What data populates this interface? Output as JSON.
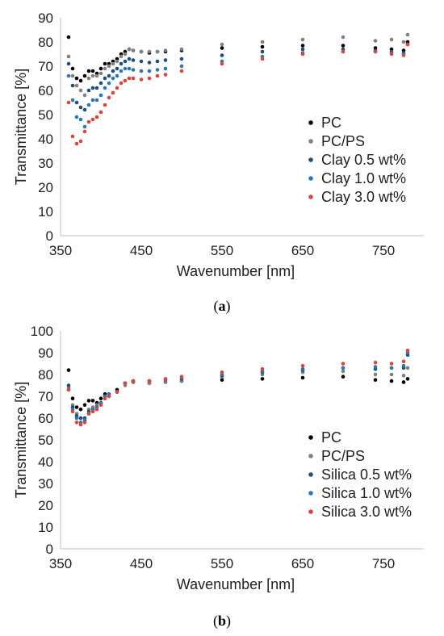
{
  "chart_data": [
    {
      "type": "scatter",
      "caption": "a",
      "xlabel": "Wavenumber [nm]",
      "ylabel": "Transmittance [%]",
      "xlim": [
        350,
        800
      ],
      "ylim": [
        0,
        90
      ],
      "xticks": [
        350,
        450,
        550,
        650,
        750
      ],
      "yticks": [
        0,
        10,
        20,
        30,
        40,
        50,
        60,
        70,
        80,
        90
      ],
      "grid": false,
      "legend_position": "right",
      "series": [
        {
          "name": "PC",
          "color": "#000000",
          "x": [
            360,
            365,
            370,
            375,
            380,
            385,
            390,
            395,
            400,
            405,
            410,
            415,
            420,
            425,
            430,
            435,
            440,
            450,
            460,
            470,
            480,
            500,
            550,
            600,
            650,
            700,
            740,
            760,
            775,
            780
          ],
          "y": [
            82,
            69,
            65,
            64,
            66,
            68,
            68,
            67,
            69,
            71,
            71,
            72,
            73,
            75,
            76,
            77,
            76.5,
            76,
            75.5,
            76,
            76,
            76.5,
            77.5,
            78,
            78.5,
            78.5,
            77.5,
            77,
            76.5,
            80
          ]
        },
        {
          "name": "PC/PS",
          "color": "#808080",
          "x": [
            360,
            365,
            370,
            375,
            380,
            385,
            390,
            395,
            400,
            405,
            410,
            415,
            420,
            425,
            430,
            435,
            440,
            450,
            460,
            470,
            480,
            500,
            550,
            600,
            650,
            700,
            740,
            760,
            775,
            780
          ],
          "y": [
            74,
            66,
            62,
            60,
            58,
            65,
            66,
            66,
            67,
            69,
            70,
            71,
            72,
            74,
            75,
            77,
            76.5,
            76,
            76,
            76,
            76.5,
            77,
            79,
            80,
            81,
            82,
            80.5,
            81,
            80,
            83
          ]
        },
        {
          "name": "Clay 0.5 wt%",
          "color": "#1f4e79",
          "x": [
            360,
            365,
            370,
            375,
            380,
            385,
            390,
            395,
            400,
            405,
            410,
            415,
            420,
            425,
            430,
            435,
            440,
            450,
            460,
            470,
            480,
            500,
            550,
            600,
            650,
            700,
            740,
            760,
            775,
            780
          ],
          "y": [
            71,
            62,
            55,
            53,
            52,
            60,
            61,
            61,
            63,
            65,
            66,
            68,
            69,
            71,
            72,
            73,
            72.5,
            72,
            71.5,
            72,
            72.5,
            73,
            74.5,
            76,
            77,
            77,
            76.5,
            76,
            75.5,
            79
          ]
        },
        {
          "name": "Clay 1.0 wt%",
          "color": "#2e75b6",
          "x": [
            360,
            365,
            370,
            375,
            380,
            385,
            390,
            395,
            400,
            405,
            410,
            415,
            420,
            425,
            430,
            435,
            440,
            450,
            460,
            470,
            480,
            500,
            550,
            600,
            650,
            700,
            740,
            760,
            775,
            780
          ],
          "y": [
            66,
            56,
            49,
            48,
            45,
            54,
            56,
            56,
            58,
            61,
            63,
            65,
            66,
            68,
            69,
            69,
            68.5,
            68,
            68,
            68.5,
            69,
            70,
            72,
            74,
            75.5,
            76,
            76,
            75.5,
            75,
            79
          ]
        },
        {
          "name": "Clay 3.0 wt%",
          "color": "#e0433a",
          "x": [
            360,
            365,
            370,
            375,
            380,
            385,
            390,
            395,
            400,
            405,
            410,
            415,
            420,
            425,
            430,
            435,
            440,
            450,
            460,
            470,
            480,
            500,
            550,
            600,
            650,
            700,
            740,
            760,
            775,
            780
          ],
          "y": [
            55,
            41,
            38,
            39,
            43,
            47,
            48,
            49,
            51,
            54,
            57,
            59,
            61,
            63,
            64,
            65,
            65,
            64.5,
            65,
            66,
            66.5,
            68,
            71,
            73,
            75,
            76,
            76,
            75,
            74.5,
            79
          ]
        }
      ]
    },
    {
      "type": "scatter",
      "caption": "b",
      "xlabel": "Wavenumber [nm]",
      "ylabel": "Transmittance [%]",
      "xlim": [
        350,
        800
      ],
      "ylim": [
        0,
        100
      ],
      "xticks": [
        350,
        450,
        550,
        650,
        750
      ],
      "yticks": [
        0,
        10,
        20,
        30,
        40,
        50,
        60,
        70,
        80,
        90,
        100
      ],
      "grid": false,
      "legend_position": "right",
      "series": [
        {
          "name": "PC",
          "color": "#000000",
          "x": [
            360,
            365,
            370,
            375,
            380,
            385,
            390,
            395,
            400,
            405,
            410,
            420,
            430,
            440,
            460,
            480,
            500,
            550,
            600,
            650,
            700,
            740,
            760,
            775,
            780
          ],
          "y": [
            82,
            69,
            65,
            64,
            66,
            68,
            68,
            67,
            69,
            71,
            71,
            73,
            76,
            76.5,
            76,
            76.5,
            77,
            77.5,
            78,
            78.5,
            79,
            77.5,
            77,
            76.5,
            78
          ]
        },
        {
          "name": "PC/PS",
          "color": "#808080",
          "x": [
            360,
            365,
            370,
            375,
            380,
            385,
            390,
            395,
            400,
            405,
            410,
            420,
            430,
            440,
            460,
            480,
            500,
            550,
            600,
            650,
            700,
            740,
            760,
            775,
            780
          ],
          "y": [
            74,
            66,
            62,
            60,
            59,
            64,
            65,
            66,
            67,
            69,
            70,
            72,
            75,
            76.5,
            76,
            76.5,
            77,
            79,
            80,
            81,
            81.5,
            80,
            80,
            79.5,
            83
          ]
        },
        {
          "name": "Silica 0.5 wt%",
          "color": "#1f4e79",
          "x": [
            360,
            365,
            370,
            375,
            380,
            385,
            390,
            395,
            400,
            405,
            410,
            420,
            430,
            440,
            460,
            480,
            500,
            550,
            600,
            650,
            700,
            740,
            760,
            775,
            780
          ],
          "y": [
            75,
            65,
            61,
            60,
            60,
            63,
            64,
            65,
            67,
            70,
            71,
            72,
            76,
            77,
            77,
            77.5,
            78,
            79.5,
            81,
            82,
            83,
            82.5,
            83,
            83,
            89
          ]
        },
        {
          "name": "Silica 1.0 wt%",
          "color": "#2e75b6",
          "x": [
            360,
            365,
            370,
            375,
            380,
            385,
            390,
            395,
            400,
            405,
            410,
            420,
            430,
            440,
            460,
            480,
            500,
            550,
            600,
            650,
            700,
            740,
            760,
            775,
            780
          ],
          "y": [
            73,
            64,
            60,
            58,
            59,
            62,
            64,
            65,
            67,
            70,
            71,
            72,
            76,
            77,
            77,
            77.5,
            78.5,
            80,
            81.5,
            82.5,
            83,
            83.5,
            83,
            84,
            90
          ]
        },
        {
          "name": "Silica 3.0 wt%",
          "color": "#e0433a",
          "x": [
            360,
            365,
            370,
            375,
            380,
            385,
            390,
            395,
            400,
            405,
            410,
            420,
            430,
            440,
            460,
            480,
            500,
            550,
            600,
            650,
            700,
            740,
            760,
            775,
            780
          ],
          "y": [
            73,
            63,
            58,
            57,
            58,
            62,
            63,
            64,
            66,
            69,
            70,
            72,
            76,
            77,
            77,
            78,
            79,
            81,
            82.5,
            84,
            85,
            85.5,
            85,
            86,
            91
          ]
        }
      ]
    }
  ]
}
